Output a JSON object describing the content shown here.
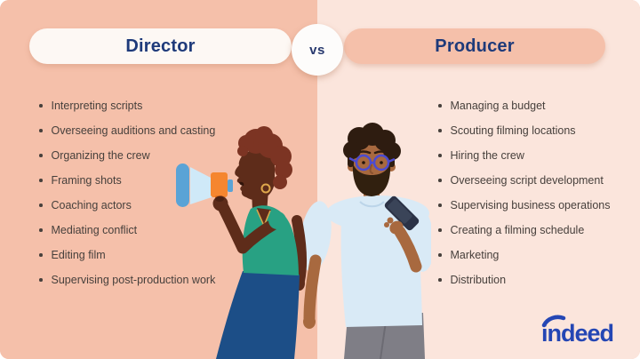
{
  "comparison": {
    "vs_label": "vs",
    "left": {
      "title": "Director",
      "items": [
        "Interpreting scripts",
        "Overseeing auditions and casting",
        "Organizing the crew",
        "Framing shots",
        "Coaching actors",
        "Mediating conflict",
        "Editing film",
        "Supervising post-production work"
      ]
    },
    "right": {
      "title": "Producer",
      "items": [
        "Managing a budget",
        "Scouting filming locations",
        "Hiring the crew",
        "Overseeing script development",
        "Supervising business operations",
        "Creating a filming schedule",
        "Marketing",
        "Distribution"
      ]
    }
  },
  "branding": {
    "logo_text": "indeed"
  },
  "colors": {
    "left_bg": "#f5c0aa",
    "right_bg": "#fbe5dc",
    "left_pill_bg": "#fdf8f4",
    "right_pill_bg": "#f5c0aa",
    "title_text": "#1e3a7a",
    "vs_bg": "#fdfcfb",
    "vs_text": "#27386e",
    "list_text": "#47403c",
    "logo_blue": "#2446b4",
    "woman_skin": "#5e2c1a",
    "woman_hair": "#7c3423",
    "woman_top": "#28a183",
    "woman_skirt": "#1c4e87",
    "woman_jewelry": "#dfa74b",
    "man_skin": "#a8693f",
    "man_hair": "#2e1c10",
    "man_beard": "#31200f",
    "man_shirt": "#d9eaf6",
    "man_pants": "#7f7e86",
    "glasses_frame": "#4c4bd0",
    "phone_body": "#2b3246",
    "megaphone_cone": "#cfe9f8",
    "megaphone_cap": "#5aa3d6",
    "megaphone_body": "#f5862f"
  }
}
